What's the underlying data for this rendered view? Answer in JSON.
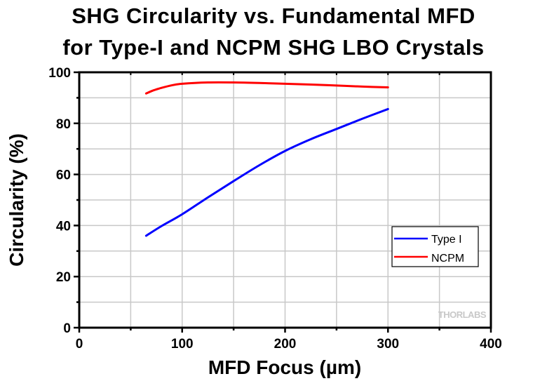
{
  "chart_data": {
    "type": "line",
    "title": "SHG Circularity vs. Fundamental MFD",
    "subtitle": "for Type-I and NCPM SHG LBO Crystals",
    "xlabel": "MFD Focus (µm)",
    "ylabel": "Circularity (%)",
    "xlim": [
      0,
      400
    ],
    "ylim": [
      0,
      100
    ],
    "xticks": [
      0,
      100,
      200,
      300,
      400
    ],
    "yticks": [
      0,
      20,
      40,
      60,
      80,
      100
    ],
    "x_minor_step": 50,
    "y_minor_step": 10,
    "grid": true,
    "legend_position": "bottom-right",
    "series": [
      {
        "name": "Type I",
        "color": "#0000ff",
        "x": [
          65,
          80,
          100,
          125,
          150,
          175,
          200,
          225,
          250,
          275,
          300
        ],
        "y": [
          36.0,
          39.8,
          44.4,
          51.0,
          57.4,
          63.6,
          69.2,
          73.8,
          77.8,
          81.8,
          85.6
        ]
      },
      {
        "name": "NCPM",
        "color": "#ff0000",
        "x": [
          65,
          72,
          80,
          90,
          100,
          125,
          150,
          175,
          200,
          225,
          250,
          275,
          300
        ],
        "y": [
          91.7,
          92.9,
          93.9,
          94.9,
          95.5,
          96.0,
          96.0,
          95.8,
          95.5,
          95.2,
          94.8,
          94.4,
          94.1
        ]
      }
    ],
    "watermark": "THORLABS"
  },
  "colors": {
    "grid": "#c8c8c8",
    "axis": "#000000"
  }
}
